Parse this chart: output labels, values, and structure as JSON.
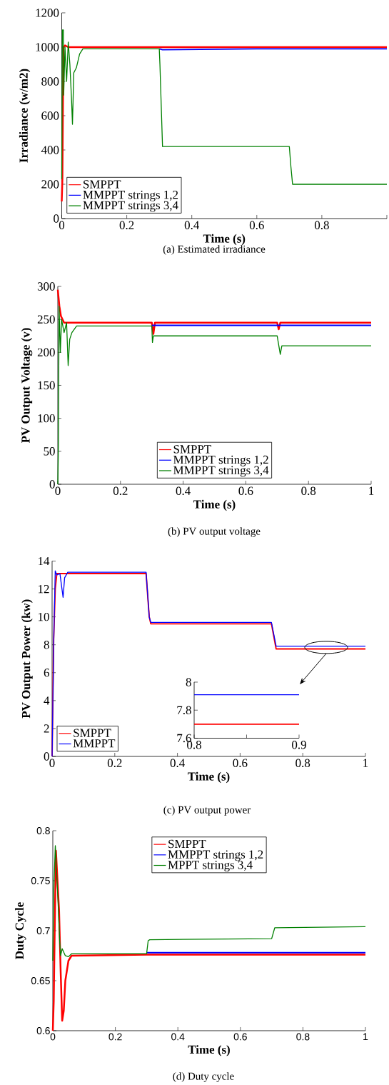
{
  "chart_data": [
    {
      "type": "line",
      "xlabel": "Time (s)",
      "ylabel": "Irradiance (w/m2)",
      "annotations": [
        "(a) Estimated irradiance"
      ],
      "xlim": [
        0,
        1
      ],
      "ylim": [
        0,
        1200
      ],
      "xticks": [
        0,
        0.2,
        0.4,
        0.6,
        0.8,
        {
          "value": 1,
          "label": null
        }
      ],
      "yticks": [
        0,
        200,
        400,
        600,
        800,
        1000,
        1200
      ],
      "legend": "bottom left",
      "series": [
        {
          "name": "SMPPT",
          "color": "#ff0000",
          "x": [
            0,
            0.002,
            0.005,
            0.01,
            0.02,
            0.3,
            0.6,
            1
          ],
          "values": [
            100,
            230,
            1000,
            1010,
            1000,
            1000,
            1000,
            1000
          ]
        },
        {
          "name": "MMPPT strings 1,2",
          "color": "#0000ff",
          "x": [
            0.3,
            0.31,
            0.6,
            0.9,
            1
          ],
          "values": [
            990,
            985,
            990,
            990,
            990
          ]
        },
        {
          "name": "MMPPT strings 3,4",
          "color": "#008000",
          "x": [
            0,
            0.002,
            0.005,
            0.006,
            0.01,
            0.015,
            0.02,
            0.025,
            0.03,
            0.033,
            0.037,
            0.045,
            0.055,
            0.065,
            0.3,
            0.302,
            0.31,
            0.7,
            0.705,
            0.71,
            1
          ],
          "values": [
            230,
            1100,
            1100,
            720,
            1000,
            800,
            1030,
            900,
            700,
            550,
            850,
            880,
            960,
            990,
            990,
            900,
            420,
            420,
            300,
            200,
            200
          ]
        }
      ]
    },
    {
      "type": "line",
      "xlabel": "Time (s)",
      "ylabel": "PV Output Voltage (v)",
      "annotations": [
        "(b) PV output voltage"
      ],
      "xlim": [
        0,
        1
      ],
      "ylim": [
        0,
        300
      ],
      "xticks": [
        0,
        0.2,
        0.4,
        0.6,
        0.8,
        1
      ],
      "yticks": [
        0,
        50,
        100,
        150,
        200,
        250,
        300
      ],
      "legend": "bottom",
      "series": [
        {
          "name": "SMPPT",
          "color": "#ff0000",
          "x": [
            0,
            0.005,
            0.01,
            0.02,
            0.3,
            0.305,
            0.31,
            0.7,
            0.705,
            0.71,
            1
          ],
          "values": [
            295,
            270,
            255,
            245,
            245,
            228,
            245,
            245,
            235,
            245,
            245
          ]
        },
        {
          "name": "MMPPT strings 1,2",
          "color": "#0000ff",
          "x": [
            0.3,
            0.31,
            0.7,
            0.71,
            1
          ],
          "values": [
            241,
            241,
            241,
            241,
            241
          ]
        },
        {
          "name": "MMPPT strings 3,4",
          "color": "#008000",
          "x": [
            0,
            0.002,
            0.004,
            0.008,
            0.012,
            0.02,
            0.028,
            0.033,
            0.038,
            0.045,
            0.06,
            0.3,
            0.302,
            0.305,
            0.7,
            0.71,
            0.715,
            1
          ],
          "values": [
            0,
            60,
            270,
            200,
            250,
            230,
            245,
            180,
            220,
            230,
            240,
            240,
            215,
            225,
            225,
            197,
            210,
            210
          ]
        }
      ]
    },
    {
      "type": "line",
      "xlabel": "Time (s)",
      "ylabel": "PV Output Power (kw)",
      "annotations": [
        "(c) PV output power"
      ],
      "xlim": [
        0,
        1
      ],
      "ylim": [
        0,
        14
      ],
      "xticks": [
        0,
        0.2,
        0.4,
        0.6,
        0.8,
        1
      ],
      "yticks": [
        0,
        2,
        4,
        6,
        8,
        10,
        12,
        14
      ],
      "legend": "bottom left",
      "series": [
        {
          "name": "SMPPT",
          "color": "#ff0000",
          "x": [
            0,
            0.005,
            0.01,
            0.015,
            0.3,
            0.31,
            0.315,
            0.7,
            0.715,
            1
          ],
          "values": [
            0,
            8.4,
            12,
            13.1,
            13.1,
            10,
            9.5,
            9.5,
            7.7,
            7.7
          ]
        },
        {
          "name": "MMPPT",
          "color": "#0000ff",
          "x": [
            0,
            0.005,
            0.01,
            0.015,
            0.025,
            0.035,
            0.04,
            0.05,
            0.3,
            0.31,
            0.315,
            0.7,
            0.715,
            1
          ],
          "values": [
            0,
            8,
            13.3,
            13,
            13.1,
            11.4,
            12.8,
            13.2,
            13.2,
            10,
            9.6,
            9.6,
            7.9,
            7.9
          ]
        }
      ]
    },
    {
      "type": "line",
      "xlim": [
        0.8,
        0.9
      ],
      "ylim": [
        7.6,
        8
      ],
      "xticks": [
        0.8,
        {
          "value": 0.85,
          "label": null
        },
        0.9
      ],
      "yticks": [
        7.6,
        7.8,
        8
      ],
      "series": [
        {
          "color": "#ff0000",
          "x": [
            0.8,
            0.9
          ],
          "values": [
            7.7,
            7.7
          ]
        },
        {
          "color": "#0000ff",
          "x": [
            0.8,
            0.9
          ],
          "values": [
            7.91,
            7.91
          ]
        }
      ]
    },
    {
      "type": "line",
      "xlabel": "Time (s)",
      "ylabel": "Duty Cycle",
      "annotations": [
        "(d) Duty cycle"
      ],
      "xlim": [
        0,
        1
      ],
      "ylim": [
        0.6,
        0.8
      ],
      "xticks": [
        0,
        0.2,
        0.4,
        0.6,
        0.8,
        1
      ],
      "yticks": [
        0.6,
        0.65,
        0.7,
        0.75,
        0.8
      ],
      "legend": "top",
      "series": [
        {
          "name": "SMPPT",
          "color": "#ff0000",
          "x": [
            0,
            0.003,
            0.006,
            0.01,
            0.015,
            0.02,
            0.025,
            0.03,
            0.035,
            0.04,
            0.05,
            0.06,
            0.3,
            0.7,
            1
          ],
          "values": [
            0.6,
            0.63,
            0.7,
            0.78,
            0.75,
            0.72,
            0.66,
            0.61,
            0.62,
            0.65,
            0.67,
            0.675,
            0.676,
            0.676,
            0.676
          ]
        },
        {
          "name": "MMPPT strings 1,2",
          "color": "#0000ff",
          "x": [
            0.3,
            0.31,
            0.7,
            1
          ],
          "values": [
            0.678,
            0.678,
            0.678,
            0.678
          ]
        },
        {
          "name": "MPPT strings 3,4",
          "color": "#008000",
          "x": [
            0,
            0.003,
            0.008,
            0.012,
            0.018,
            0.022,
            0.025,
            0.03,
            0.04,
            0.05,
            0.06,
            0.3,
            0.305,
            0.31,
            0.7,
            0.71,
            1
          ],
          "values": [
            0.67,
            0.74,
            0.785,
            0.76,
            0.72,
            0.69,
            0.675,
            0.682,
            0.675,
            0.674,
            0.677,
            0.677,
            0.69,
            0.691,
            0.692,
            0.703,
            0.704
          ]
        }
      ]
    }
  ]
}
